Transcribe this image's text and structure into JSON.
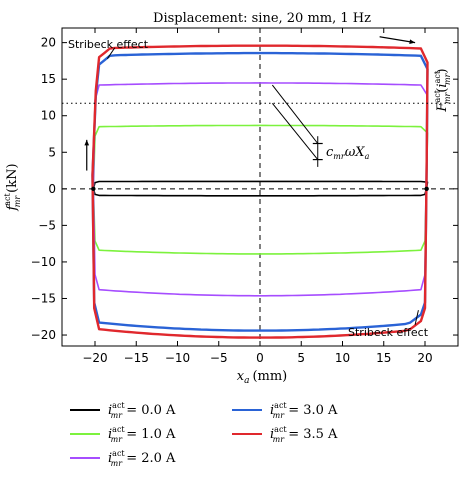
{
  "chart_data": {
    "type": "line",
    "title": "Displacement: sine, 20 mm, 1 Hz",
    "xlabel_main": "x",
    "xlabel_sub": "a",
    "xlabel_unit": "(mm)",
    "ylabel_main": "f",
    "ylabel_sup": "act",
    "ylabel_sub": "mr",
    "ylabel_unit": "(kN)",
    "xlim": [
      -24,
      24
    ],
    "ylim": [
      -21.5,
      22
    ],
    "xticks": [
      -20,
      -15,
      -10,
      -5,
      0,
      5,
      10,
      15,
      20
    ],
    "yticks": [
      -20,
      -15,
      -10,
      -5,
      0,
      5,
      10,
      15,
      20
    ],
    "series": [
      {
        "name": "0.0 A",
        "color": "#000000",
        "upper": 1.0,
        "lower": -0.9,
        "stribeck": false
      },
      {
        "name": "1.0 A",
        "color": "#7cf23d",
        "upper": 8.5,
        "lower": -8.4,
        "stribeck": false
      },
      {
        "name": "2.0 A",
        "color": "#a64dff",
        "upper": 14.2,
        "lower": -13.8,
        "stribeck": false
      },
      {
        "name": "3.0 A",
        "color": "#2a63d6",
        "upper": 18.2,
        "lower": -18.3,
        "stribeck": true
      },
      {
        "name": "3.5 A",
        "color": "#e0282d",
        "upper": 19.2,
        "lower": -19.2,
        "stribeck": true
      }
    ],
    "threshold_y": 11.7,
    "annotations": {
      "stribeck_top": "Stribeck effect",
      "stribeck_bottom": "Stribeck effect",
      "damping_symbol": "c",
      "damping_sub": "mr",
      "damping_rest": "ωX",
      "damping_rest_sub": "a",
      "right_label_main": "F",
      "right_label_sup": "act",
      "right_label_sub": "mr",
      "right_label_arg_main": "i",
      "right_label_arg_sup": "act",
      "right_label_arg_sub": "mr"
    },
    "legend": {
      "placement": "bottom",
      "symbol_main": "i",
      "symbol_sup": "act",
      "symbol_sub": "mr",
      "items": [
        {
          "label": "= 0.0 A",
          "color": "#000000"
        },
        {
          "label": "= 3.0 A",
          "color": "#2a63d6"
        },
        {
          "label": "= 1.0 A",
          "color": "#7cf23d"
        },
        {
          "label": "= 3.5 A",
          "color": "#e0282d"
        },
        {
          "label": "= 2.0 A",
          "color": "#a64dff"
        }
      ]
    }
  }
}
